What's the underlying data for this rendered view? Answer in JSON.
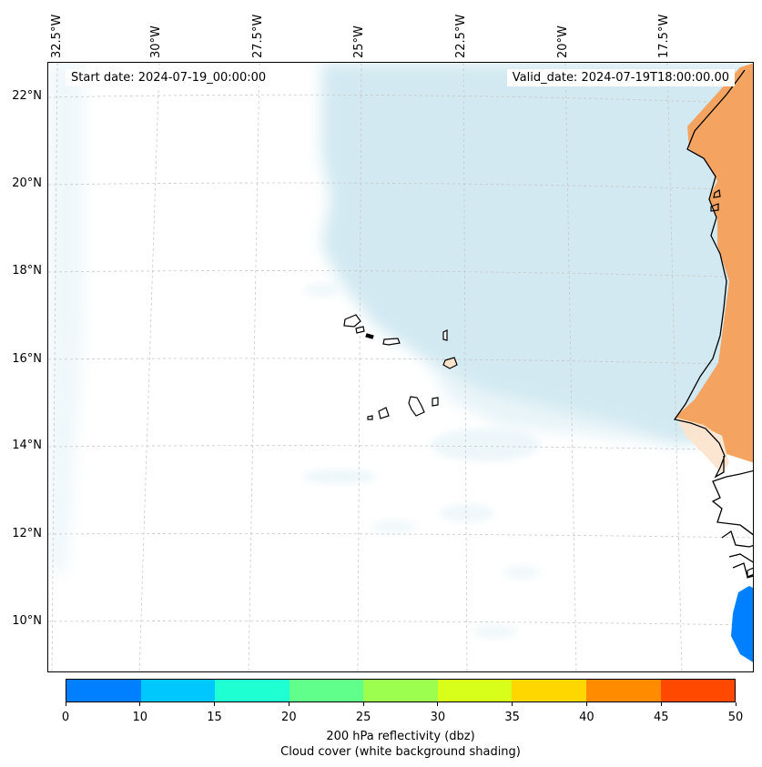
{
  "map": {
    "lon_labels": [
      "32.5°W",
      "30°W",
      "27.5°W",
      "25°W",
      "22.5°W",
      "20°W",
      "17.5°W"
    ],
    "lat_labels": [
      "22°N",
      "20°N",
      "18°N",
      "16°N",
      "14°N",
      "12°N",
      "10°N"
    ],
    "start_date": "Start date: 2024-07-19_00:00:00",
    "valid_date": "Valid_date: 2024-07-19T18:00:00.00",
    "colors": {
      "cloud": "#add8e6",
      "land_reflectivity": "#f4a460",
      "coastline": "#000000",
      "gridline": "#c8c8c8"
    }
  },
  "colorbar": {
    "tick_labels": [
      "0",
      "10",
      "15",
      "20",
      "25",
      "30",
      "35",
      "40",
      "45",
      "50"
    ],
    "colors": [
      "#0080ff",
      "#00c8ff",
      "#1effd2",
      "#60ff8c",
      "#9cff50",
      "#d8ff1a",
      "#ffd700",
      "#ff8c00",
      "#ff4800"
    ],
    "caption_line1": "200 hPa reflectivity (dbz)",
    "caption_line2": "Cloud cover (white background shading)"
  }
}
